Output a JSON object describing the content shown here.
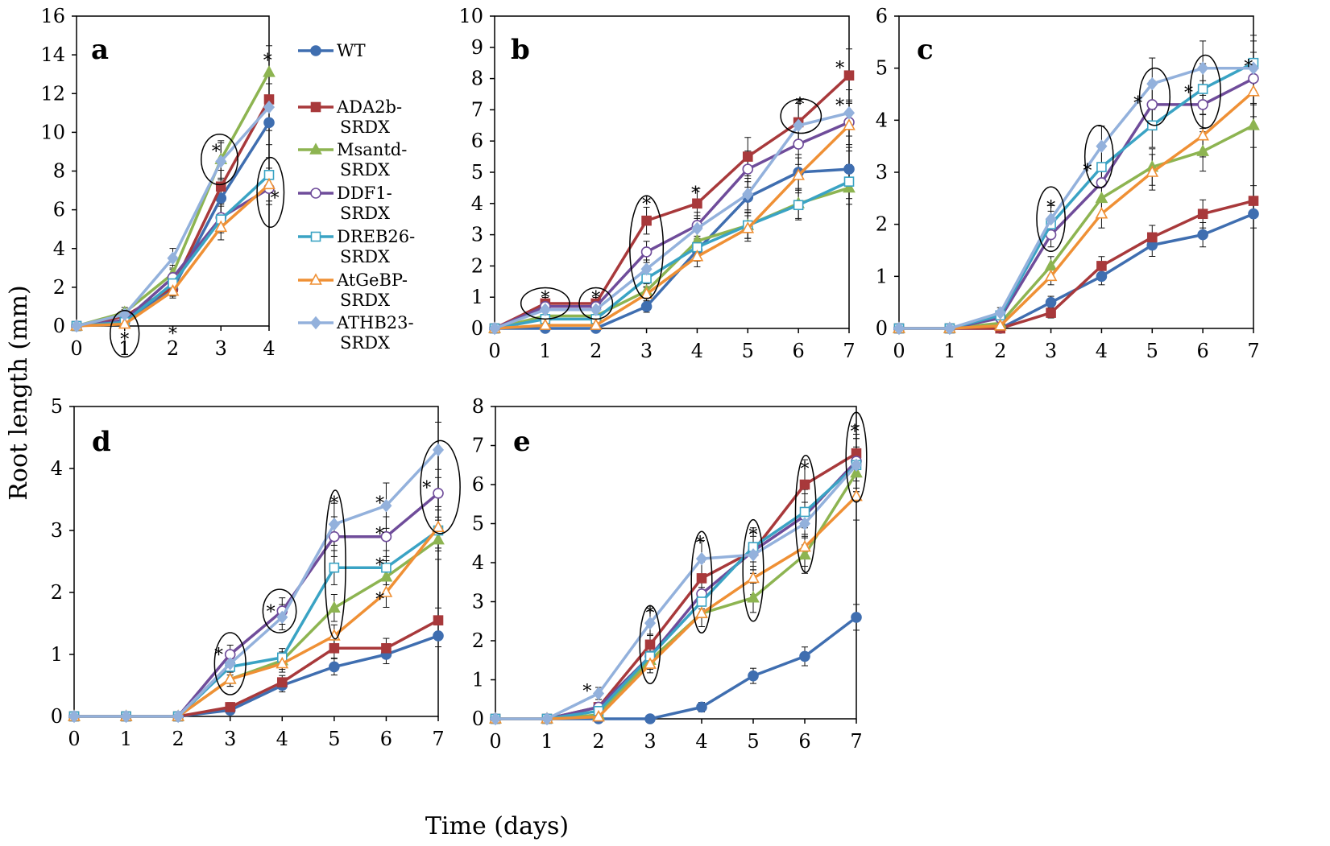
{
  "figure": {
    "ylabel": "Root length (mm)",
    "xlabel": "Time (days)"
  },
  "legend": {
    "entries": [
      {
        "line1": "WT",
        "line2": ""
      },
      {
        "line1": "ADA2b-",
        "line2": "SRDX"
      },
      {
        "line1": "Msantd-",
        "line2": "SRDX"
      },
      {
        "line1": "DDF1-",
        "line2": "SRDX"
      },
      {
        "line1": "DREB26-",
        "line2": "SRDX"
      },
      {
        "line1": "AtGeBP-",
        "line2": "SRDX"
      },
      {
        "line1": "ATHB23-",
        "line2": "SRDX"
      }
    ]
  },
  "series_style": [
    {
      "name": "WT",
      "color": "#3f6eb0",
      "marker": "circle-filled"
    },
    {
      "name": "ADA2b-SRDX",
      "color": "#a8393b",
      "marker": "square-filled"
    },
    {
      "name": "Msantd-SRDX",
      "color": "#8db451",
      "marker": "triangle-filled"
    },
    {
      "name": "DDF1-SRDX",
      "color": "#6f4c9a",
      "marker": "circle-open"
    },
    {
      "name": "DREB26-SRDX",
      "color": "#3aa3c4",
      "marker": "square-open"
    },
    {
      "name": "AtGeBP-SRDX",
      "color": "#ef9035",
      "marker": "triangle-open"
    },
    {
      "name": "ATHB23-SRDX",
      "color": "#93b1dc",
      "marker": "diamond-filled"
    }
  ],
  "chart_data": [
    {
      "panel": "a",
      "type": "line",
      "x": [
        0,
        1,
        2,
        3,
        4
      ],
      "ylim": [
        0,
        16
      ],
      "yticks": [
        0,
        2,
        4,
        6,
        8,
        10,
        12,
        14,
        16
      ],
      "series": [
        {
          "name": "WT",
          "values": [
            0,
            0.2,
            1.9,
            6.6,
            10.5
          ]
        },
        {
          "name": "ADA2b-SRDX",
          "values": [
            0,
            0.5,
            2.0,
            7.2,
            11.7
          ]
        },
        {
          "name": "Msantd-SRDX",
          "values": [
            0,
            0.7,
            2.7,
            8.6,
            13.1
          ]
        },
        {
          "name": "DDF1-SRDX",
          "values": [
            0,
            0.3,
            2.5,
            5.6,
            7.1
          ]
        },
        {
          "name": "DREB26-SRDX",
          "values": [
            0,
            0.2,
            2.2,
            5.5,
            7.8
          ]
        },
        {
          "name": "AtGeBP-SRDX",
          "values": [
            0,
            0.1,
            1.8,
            5.1,
            7.3
          ]
        },
        {
          "name": "ATHB23-SRDX",
          "values": [
            0,
            0.6,
            3.5,
            8.5,
            11.3
          ]
        }
      ],
      "annotations": [
        {
          "type": "star",
          "x": 1,
          "y": -0.5,
          "text": "*"
        },
        {
          "type": "star",
          "x": 2,
          "y": -0.2,
          "text": "*"
        },
        {
          "type": "star",
          "x": 2.9,
          "y": 9.2,
          "text": "*"
        },
        {
          "type": "star",
          "x": 3.97,
          "y": 13.9,
          "text": "*"
        },
        {
          "type": "star",
          "x": 4.12,
          "y": 6.8,
          "text": "*"
        },
        {
          "type": "ellipse",
          "x": 1,
          "y": -0.4,
          "rx": 0.3,
          "ry": 1.2
        },
        {
          "type": "ellipse",
          "x": 2.97,
          "y": 8.6,
          "rx": 0.38,
          "ry": 1.3
        },
        {
          "type": "ellipse",
          "x": 4.03,
          "y": 6.9,
          "rx": 0.28,
          "ry": 1.8
        }
      ]
    },
    {
      "panel": "b",
      "type": "line",
      "x": [
        0,
        1,
        2,
        3,
        4,
        5,
        6,
        7
      ],
      "ylim": [
        0,
        10
      ],
      "yticks": [
        0,
        1,
        2,
        3,
        4,
        5,
        6,
        7,
        8,
        9,
        10
      ],
      "series": [
        {
          "name": "WT",
          "values": [
            0,
            0,
            0,
            0.7,
            2.5,
            4.2,
            5.0,
            5.1
          ]
        },
        {
          "name": "ADA2b-SRDX",
          "values": [
            0,
            0.8,
            0.8,
            3.45,
            4.0,
            5.5,
            6.6,
            8.1
          ]
        },
        {
          "name": "Msantd-SRDX",
          "values": [
            0,
            0.4,
            0.4,
            1.2,
            2.8,
            3.3,
            4.0,
            4.5
          ]
        },
        {
          "name": "DDF1-SRDX",
          "values": [
            0,
            0.7,
            0.7,
            2.45,
            3.3,
            5.1,
            5.9,
            6.6
          ]
        },
        {
          "name": "DREB26-SRDX",
          "values": [
            0,
            0.3,
            0.3,
            1.6,
            2.6,
            3.3,
            3.95,
            4.7
          ]
        },
        {
          "name": "AtGeBP-SRDX",
          "values": [
            0,
            0.1,
            0.1,
            1.1,
            2.3,
            3.2,
            4.9,
            6.5
          ]
        },
        {
          "name": "ATHB23-SRDX",
          "values": [
            0,
            0.6,
            0.6,
            1.9,
            3.2,
            4.3,
            6.5,
            6.9
          ]
        }
      ],
      "annotations": [
        {
          "type": "star",
          "x": 1,
          "y": 1.1,
          "text": "*"
        },
        {
          "type": "star",
          "x": 2,
          "y": 1.1,
          "text": "*"
        },
        {
          "type": "star",
          "x": 3,
          "y": 4.1,
          "text": "*"
        },
        {
          "type": "star",
          "x": 3.97,
          "y": 4.45,
          "text": "*"
        },
        {
          "type": "star",
          "x": 6.03,
          "y": 7.3,
          "text": "*"
        },
        {
          "type": "star",
          "x": 6.82,
          "y": 8.45,
          "text": "*"
        },
        {
          "type": "star",
          "x": 6.82,
          "y": 7.25,
          "text": "*"
        },
        {
          "type": "ellipse",
          "x": 1,
          "y": 0.8,
          "rx": 0.48,
          "ry": 0.5
        },
        {
          "type": "ellipse",
          "x": 2,
          "y": 0.8,
          "rx": 0.33,
          "ry": 0.5
        },
        {
          "type": "ellipse",
          "x": 3,
          "y": 2.6,
          "rx": 0.33,
          "ry": 1.65
        },
        {
          "type": "ellipse",
          "x": 6.05,
          "y": 6.8,
          "rx": 0.4,
          "ry": 0.55
        }
      ]
    },
    {
      "panel": "c",
      "type": "line",
      "x": [
        0,
        1,
        2,
        3,
        4,
        5,
        6,
        7
      ],
      "ylim": [
        0,
        6
      ],
      "yticks": [
        0,
        1,
        2,
        3,
        4,
        5,
        6
      ],
      "series": [
        {
          "name": "WT",
          "values": [
            0,
            0,
            0,
            0.5,
            1.0,
            1.6,
            1.8,
            2.2
          ]
        },
        {
          "name": "ADA2b-SRDX",
          "values": [
            0,
            0,
            0,
            0.3,
            1.2,
            1.75,
            2.2,
            2.45
          ]
        },
        {
          "name": "Msantd-SRDX",
          "values": [
            0,
            0,
            0.1,
            1.2,
            2.5,
            3.1,
            3.4,
            3.9
          ]
        },
        {
          "name": "DDF1-SRDX",
          "values": [
            0,
            0,
            0.2,
            1.8,
            2.8,
            4.3,
            4.3,
            4.8
          ]
        },
        {
          "name": "DREB26-SRDX",
          "values": [
            0,
            0,
            0.25,
            2.0,
            3.1,
            3.9,
            4.6,
            5.1
          ]
        },
        {
          "name": "AtGeBP-SRDX",
          "values": [
            0,
            0,
            0.05,
            1.0,
            2.2,
            3.0,
            3.7,
            4.55
          ]
        },
        {
          "name": "ATHB23-SRDX",
          "values": [
            0,
            0,
            0.3,
            2.1,
            3.5,
            4.7,
            5.0,
            5.0
          ]
        }
      ],
      "annotations": [
        {
          "type": "star",
          "x": 3,
          "y": 2.4,
          "text": "*"
        },
        {
          "type": "star",
          "x": 3.72,
          "y": 3.1,
          "text": "*"
        },
        {
          "type": "star",
          "x": 4.72,
          "y": 4.4,
          "text": "*"
        },
        {
          "type": "star",
          "x": 5.72,
          "y": 4.6,
          "text": "*"
        },
        {
          "type": "star",
          "x": 6.9,
          "y": 5.1,
          "text": "*"
        },
        {
          "type": "ellipse",
          "x": 3,
          "y": 2.1,
          "rx": 0.28,
          "ry": 0.62
        },
        {
          "type": "ellipse",
          "x": 3.95,
          "y": 3.3,
          "rx": 0.28,
          "ry": 0.6
        },
        {
          "type": "ellipse",
          "x": 5.05,
          "y": 4.45,
          "rx": 0.3,
          "ry": 0.55
        },
        {
          "type": "ellipse",
          "x": 6.05,
          "y": 4.55,
          "rx": 0.3,
          "ry": 0.7
        }
      ]
    },
    {
      "panel": "d",
      "type": "line",
      "x": [
        0,
        1,
        2,
        3,
        4,
        5,
        6,
        7
      ],
      "ylim": [
        0,
        5
      ],
      "yticks": [
        0,
        1,
        2,
        3,
        4,
        5
      ],
      "series": [
        {
          "name": "WT",
          "values": [
            0,
            0,
            0,
            0.1,
            0.5,
            0.8,
            1.0,
            1.3
          ]
        },
        {
          "name": "ADA2b-SRDX",
          "values": [
            0,
            0,
            0,
            0.15,
            0.55,
            1.1,
            1.1,
            1.55
          ]
        },
        {
          "name": "Msantd-SRDX",
          "values": [
            0,
            0,
            0,
            0.6,
            0.9,
            1.75,
            2.25,
            2.85
          ]
        },
        {
          "name": "DDF1-SRDX",
          "values": [
            0,
            0,
            0,
            1.0,
            1.7,
            2.9,
            2.9,
            3.6
          ]
        },
        {
          "name": "DREB26-SRDX",
          "values": [
            0,
            0,
            0,
            0.8,
            0.95,
            2.4,
            2.4,
            3.0
          ]
        },
        {
          "name": "AtGeBP-SRDX",
          "values": [
            0,
            0,
            0,
            0.6,
            0.85,
            1.3,
            2.0,
            3.05
          ]
        },
        {
          "name": "ATHB23-SRDX",
          "values": [
            0,
            0,
            0,
            0.85,
            1.6,
            3.1,
            3.4,
            4.3
          ]
        }
      ],
      "annotations": [
        {
          "type": "star",
          "x": 2.78,
          "y": 1.05,
          "text": "*"
        },
        {
          "type": "star",
          "x": 3.78,
          "y": 1.75,
          "text": "*"
        },
        {
          "type": "star",
          "x": 5,
          "y": 3.5,
          "text": "*"
        },
        {
          "type": "star",
          "x": 5.88,
          "y": 3.5,
          "text": "*"
        },
        {
          "type": "star",
          "x": 5.88,
          "y": 3.0,
          "text": "*"
        },
        {
          "type": "star",
          "x": 5.88,
          "y": 2.5,
          "text": "*"
        },
        {
          "type": "star",
          "x": 5.88,
          "y": 1.95,
          "text": "*"
        },
        {
          "type": "star",
          "x": 6.78,
          "y": 3.75,
          "text": "*"
        },
        {
          "type": "ellipse",
          "x": 3,
          "y": 0.85,
          "rx": 0.3,
          "ry": 0.5
        },
        {
          "type": "ellipse",
          "x": 3.95,
          "y": 1.7,
          "rx": 0.32,
          "ry": 0.35
        },
        {
          "type": "ellipse",
          "x": 5.02,
          "y": 2.45,
          "rx": 0.2,
          "ry": 1.2
        },
        {
          "type": "ellipse",
          "x": 7.04,
          "y": 3.7,
          "rx": 0.38,
          "ry": 0.75
        }
      ]
    },
    {
      "panel": "e",
      "type": "line",
      "x": [
        0,
        1,
        2,
        3,
        4,
        5,
        6,
        7
      ],
      "ylim": [
        0,
        8
      ],
      "yticks": [
        0,
        1,
        2,
        3,
        4,
        5,
        6,
        7,
        8
      ],
      "series": [
        {
          "name": "WT",
          "values": [
            0,
            0,
            0,
            0,
            0.3,
            1.1,
            1.6,
            2.6
          ]
        },
        {
          "name": "ADA2b-SRDX",
          "values": [
            0,
            0,
            0.3,
            1.9,
            3.6,
            4.3,
            6.0,
            6.8
          ]
        },
        {
          "name": "Msantd-SRDX",
          "values": [
            0,
            0,
            0.1,
            1.5,
            2.7,
            3.1,
            4.2,
            6.3
          ]
        },
        {
          "name": "DDF1-SRDX",
          "values": [
            0,
            0,
            0.3,
            1.6,
            3.2,
            4.3,
            5.2,
            6.6
          ]
        },
        {
          "name": "DREB26-SRDX",
          "values": [
            0,
            0,
            0.2,
            1.6,
            3.0,
            4.4,
            5.3,
            6.5
          ]
        },
        {
          "name": "AtGeBP-SRDX",
          "values": [
            0,
            0,
            0.05,
            1.4,
            2.7,
            3.6,
            4.4,
            5.7
          ]
        },
        {
          "name": "ATHB23-SRDX",
          "values": [
            0,
            0,
            0.65,
            2.45,
            4.1,
            4.2,
            5.0,
            6.5
          ]
        }
      ],
      "annotations": [
        {
          "type": "star",
          "x": 1.78,
          "y": 0.8,
          "text": "*"
        },
        {
          "type": "star",
          "x": 3,
          "y": 2.8,
          "text": "*"
        },
        {
          "type": "star",
          "x": 3.97,
          "y": 4.6,
          "text": "*"
        },
        {
          "type": "star",
          "x": 5,
          "y": 4.8,
          "text": "*"
        },
        {
          "type": "star",
          "x": 6,
          "y": 6.5,
          "text": "*"
        },
        {
          "type": "star",
          "x": 6.97,
          "y": 7.45,
          "text": "*"
        },
        {
          "type": "ellipse",
          "x": 3,
          "y": 1.9,
          "rx": 0.2,
          "ry": 1.0
        },
        {
          "type": "ellipse",
          "x": 4,
          "y": 3.5,
          "rx": 0.2,
          "ry": 1.3
        },
        {
          "type": "ellipse",
          "x": 5,
          "y": 3.8,
          "rx": 0.2,
          "ry": 1.3
        },
        {
          "type": "ellipse",
          "x": 6.02,
          "y": 5.25,
          "rx": 0.2,
          "ry": 1.5
        },
        {
          "type": "ellipse",
          "x": 7,
          "y": 6.7,
          "rx": 0.2,
          "ry": 1.15
        }
      ]
    }
  ]
}
